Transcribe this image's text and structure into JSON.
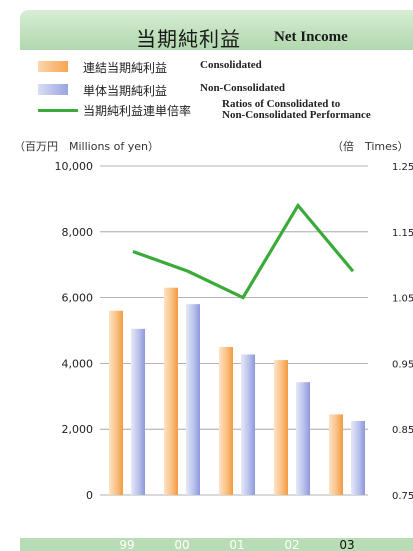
{
  "header": {
    "title_jp": "当期純利益",
    "title_en": "Net Income"
  },
  "legend": {
    "consolidated": {
      "jp": "連結当期純利益",
      "en": "Consolidated"
    },
    "non_consolidated": {
      "jp": "単体当期純利益",
      "en": "Non-Consolidated"
    },
    "ratio": {
      "jp": "当期純利益連単倍率",
      "en_line1": "Ratios of Consolidated to",
      "en_line2": "Non-Consolidated Performance"
    }
  },
  "units": {
    "left": "（百万円　Millions of yen）",
    "right": "（倍　Times）"
  },
  "colors": {
    "consolidated": "#f7b36a",
    "non_consolidated": "#a9b3e6",
    "ratio": "#3aab3a",
    "axis_band": "#b8dcb4",
    "header": "#c2e2bf"
  },
  "chart_data": {
    "type": "bar",
    "categories": [
      "99",
      "00",
      "01",
      "02",
      "03"
    ],
    "series": [
      {
        "name": "Consolidated",
        "values": [
          5600,
          6300,
          4500,
          4100,
          2450
        ]
      },
      {
        "name": "Non-Consolidated",
        "values": [
          5050,
          5800,
          4270,
          3430,
          2250
        ]
      }
    ],
    "line_series": {
      "name": "Ratios of Consolidated to Non-Consolidated Performance",
      "values": [
        1.12,
        1.09,
        1.05,
        1.19,
        1.09
      ]
    },
    "ylim_left": [
      0,
      10000
    ],
    "ylim_right": [
      0.75,
      1.25
    ],
    "yticks_left": [
      "0",
      "2,000",
      "4,000",
      "6,000",
      "8,000",
      "10,000"
    ],
    "yticks_right": [
      "0.75",
      "0.85",
      "0.95",
      "1.05",
      "1.15",
      "1.25"
    ],
    "highlight_category": "03",
    "grid": true
  }
}
